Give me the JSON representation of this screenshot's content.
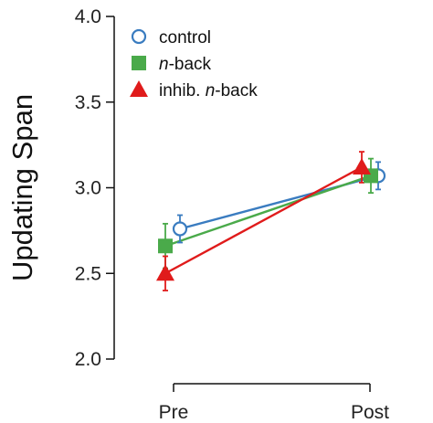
{
  "chart_data": {
    "type": "line",
    "title": "",
    "xlabel": "",
    "ylabel": "Updating Span",
    "categories": [
      "Pre",
      "Post"
    ],
    "ylim": [
      2.0,
      4.0
    ],
    "yticks": [
      "2.0",
      "2.5",
      "3.0",
      "3.5",
      "4.0"
    ],
    "legend_position": "top-left",
    "error_bars": true,
    "series": [
      {
        "name": "control",
        "legend_parts": [
          {
            "text": "control",
            "italic": false
          }
        ],
        "marker": "open-circle",
        "color": "#3a7cc0",
        "values": [
          2.76,
          3.07
        ],
        "err": [
          0.08,
          0.08
        ]
      },
      {
        "name": "n-back",
        "legend_parts": [
          {
            "text": "n",
            "italic": true
          },
          {
            "text": "-back",
            "italic": false
          }
        ],
        "marker": "filled-square",
        "color": "#4aaa4a",
        "values": [
          2.66,
          3.07
        ],
        "err": [
          0.13,
          0.1
        ]
      },
      {
        "name": "inhib. n-back",
        "legend_parts": [
          {
            "text": "inhib. ",
            "italic": false
          },
          {
            "text": "n",
            "italic": true
          },
          {
            "text": "-back",
            "italic": false
          }
        ],
        "marker": "filled-triangle",
        "color": "#e01b1b",
        "values": [
          2.5,
          3.12
        ],
        "err": [
          0.1,
          0.09
        ]
      }
    ]
  }
}
